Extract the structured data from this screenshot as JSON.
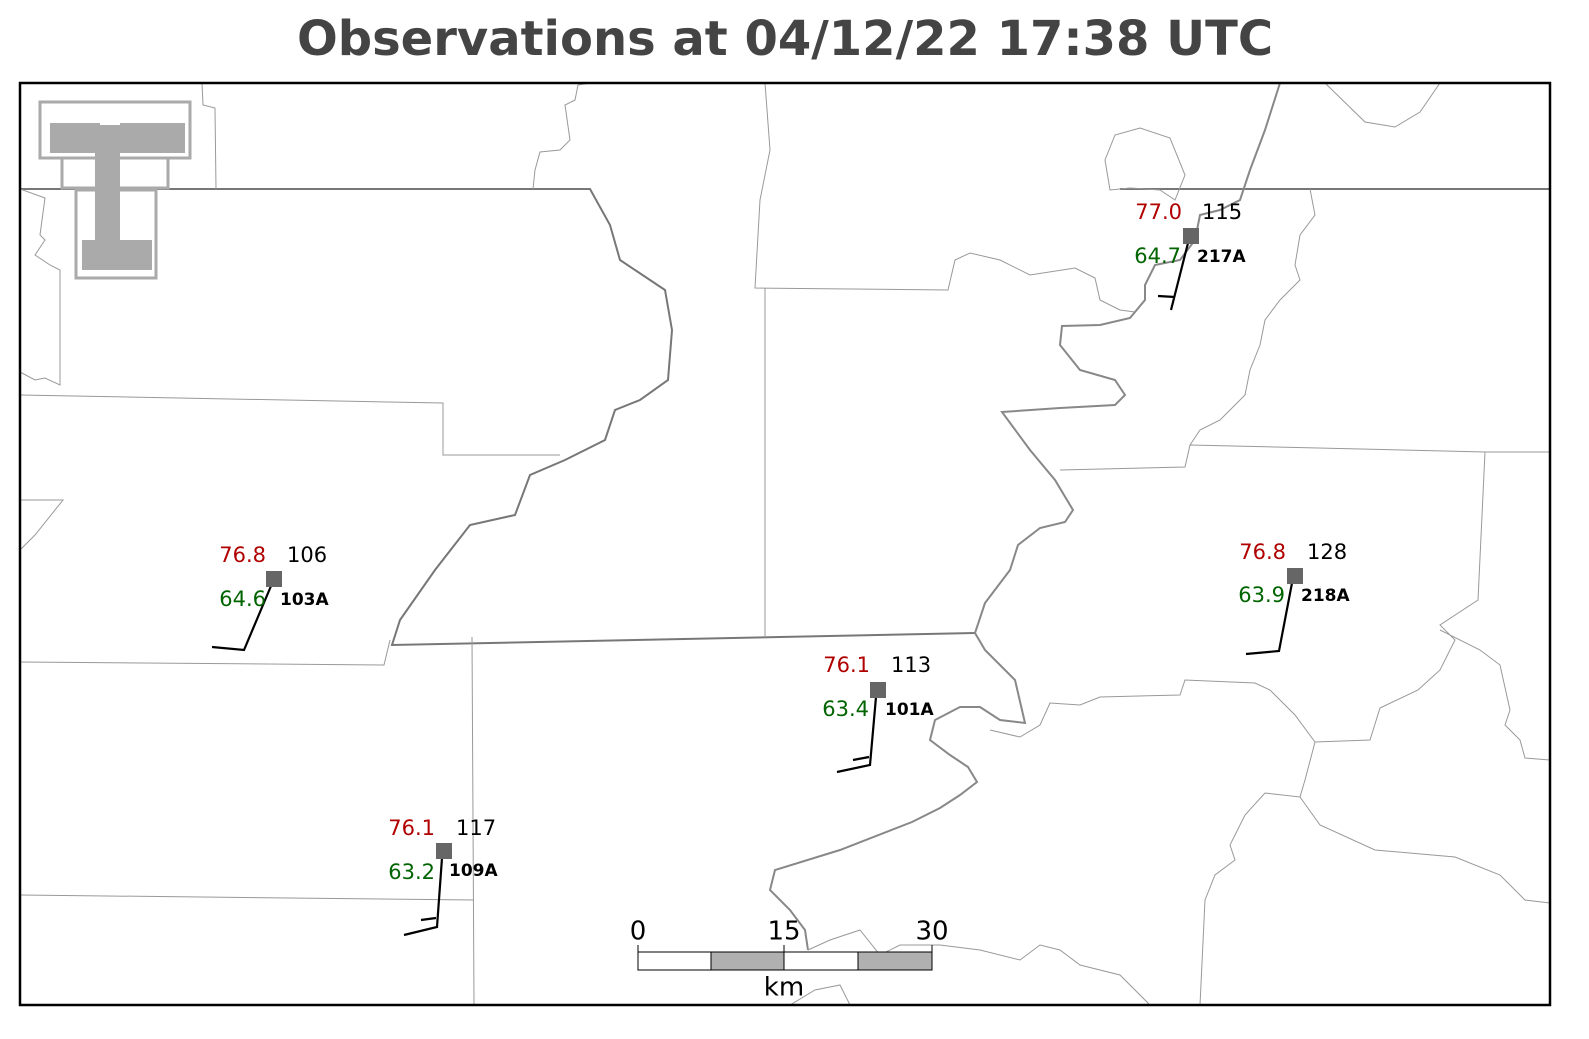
{
  "title": "Observations at 04/12/22 17:38 UTC",
  "stations": [
    {
      "id": "217A",
      "temperature": "77.0",
      "dewpoint": "64.7",
      "pressure": "115"
    },
    {
      "id": "103A",
      "temperature": "76.8",
      "dewpoint": "64.6",
      "pressure": "106"
    },
    {
      "id": "218A",
      "temperature": "76.8",
      "dewpoint": "63.9",
      "pressure": "128"
    },
    {
      "id": "101A",
      "temperature": "76.1",
      "dewpoint": "63.4",
      "pressure": "113"
    },
    {
      "id": "109A",
      "temperature": "76.1",
      "dewpoint": "63.2",
      "pressure": "117"
    }
  ],
  "scale_bar": {
    "labels": [
      "0",
      "15",
      "30"
    ],
    "unit": "km"
  }
}
